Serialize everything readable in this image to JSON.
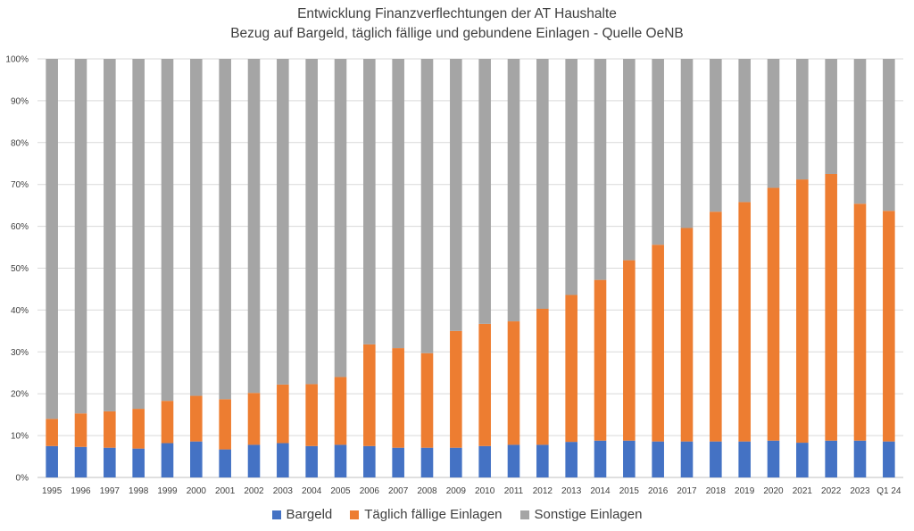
{
  "chart_data": {
    "type": "bar",
    "stacked": true,
    "percent": true,
    "title": "Entwicklung Finanzverflechtungen der AT Haushalte",
    "subtitle": "Bezug auf Bargeld, täglich fällige und gebundene Einlagen - Quelle OeNB",
    "xlabel": "",
    "ylabel": "",
    "ylim": [
      0,
      100
    ],
    "yticks": [
      "0%",
      "10%",
      "20%",
      "30%",
      "40%",
      "50%",
      "60%",
      "70%",
      "80%",
      "90%",
      "100%"
    ],
    "grid": true,
    "legend": "bottom",
    "categories": [
      "1995",
      "1996",
      "1997",
      "1998",
      "1999",
      "2000",
      "2001",
      "2002",
      "2003",
      "2004",
      "2005",
      "2006",
      "2007",
      "2008",
      "2009",
      "2010",
      "2011",
      "2012",
      "2013",
      "2014",
      "2015",
      "2016",
      "2017",
      "2018",
      "2019",
      "2020",
      "2021",
      "2022",
      "2023",
      "Q1 24"
    ],
    "series": [
      {
        "name": "Bargeld",
        "color": "#4472c4",
        "values": [
          7.5,
          7.3,
          7.1,
          6.9,
          8.2,
          8.6,
          6.7,
          7.8,
          8.2,
          7.5,
          7.8,
          7.5,
          7.1,
          7.1,
          7.1,
          7.5,
          7.8,
          7.8,
          8.5,
          8.8,
          8.8,
          8.6,
          8.6,
          8.6,
          8.6,
          8.8,
          8.3,
          8.8,
          8.8,
          8.6
        ]
      },
      {
        "name": "Täglich fällige Einlagen",
        "color": "#ed7d31",
        "values": [
          6.5,
          8.0,
          8.7,
          9.5,
          10.1,
          10.9,
          12.0,
          12.4,
          14.0,
          14.8,
          16.2,
          24.3,
          23.8,
          22.6,
          27.9,
          29.2,
          29.5,
          32.5,
          35.1,
          38.4,
          43.1,
          47.0,
          51.0,
          54.9,
          57.2,
          60.4,
          62.9,
          63.7,
          56.6,
          55.1
        ]
      },
      {
        "name": "Sonstige Einlagen",
        "color": "#a5a5a5",
        "values": [
          86.0,
          84.7,
          84.2,
          83.6,
          81.7,
          80.5,
          81.3,
          79.8,
          77.8,
          77.7,
          76.0,
          68.2,
          69.1,
          70.3,
          65.0,
          63.3,
          62.7,
          59.7,
          56.4,
          52.8,
          48.1,
          44.4,
          40.4,
          36.5,
          34.2,
          30.8,
          28.8,
          27.5,
          34.6,
          36.3
        ]
      }
    ]
  }
}
